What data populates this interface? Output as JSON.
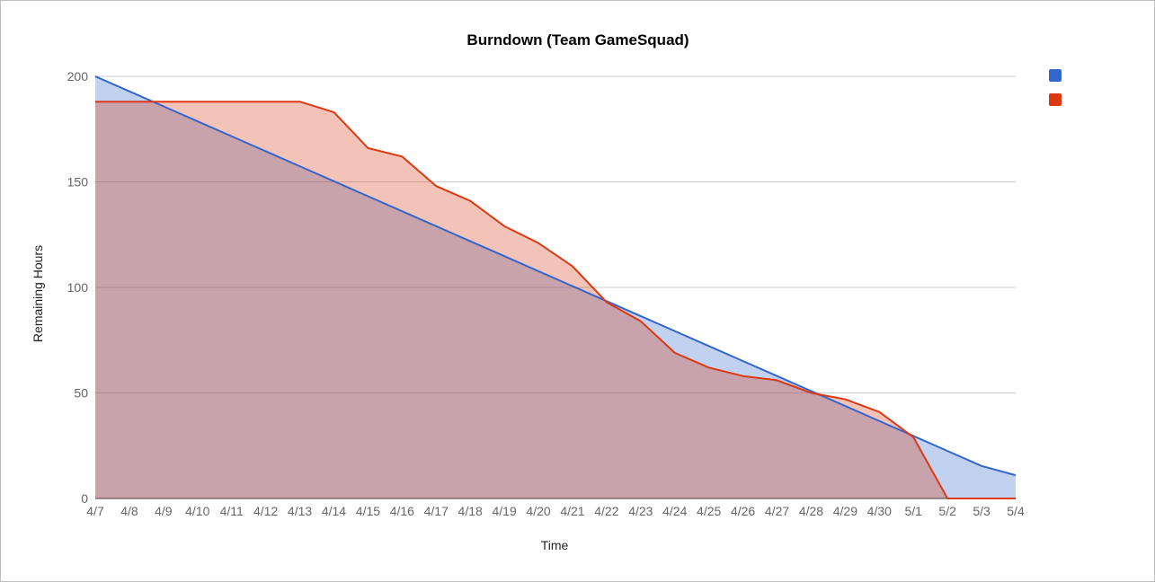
{
  "chart_data": {
    "type": "area",
    "title": "Burndown (Team GameSquad)",
    "xlabel": "Time",
    "ylabel": "Remaining Hours",
    "ylim": [
      0,
      200
    ],
    "yticks": [
      "0",
      "50",
      "100",
      "150",
      "200"
    ],
    "categories": [
      "4/7",
      "4/8",
      "4/9",
      "4/10",
      "4/11",
      "4/12",
      "4/13",
      "4/14",
      "4/15",
      "4/16",
      "4/17",
      "4/18",
      "4/19",
      "4/20",
      "4/21",
      "4/22",
      "4/23",
      "4/24",
      "4/25",
      "4/26",
      "4/27",
      "4/28",
      "4/29",
      "4/30",
      "5/1",
      "5/2",
      "5/3",
      "5/4"
    ],
    "grid": true,
    "legend_position": "right",
    "series": [
      {
        "color": "#3366cc",
        "values": [
          200,
          192.9,
          185.8,
          178.7,
          171.6,
          164.5,
          157.4,
          150.3,
          143.2,
          136.1,
          129.0,
          121.9,
          114.8,
          107.7,
          100.6,
          93.5,
          86.4,
          79.3,
          72.2,
          65.1,
          58.0,
          50.9,
          43.8,
          36.7,
          29.6,
          22.5,
          15.4,
          11
        ]
      },
      {
        "color": "#dc3912",
        "values": [
          188,
          188,
          188,
          188,
          188,
          188,
          188,
          183,
          166,
          162,
          148,
          141,
          129,
          121,
          110,
          93,
          84,
          69,
          62,
          58,
          56,
          50,
          47,
          41,
          29,
          0,
          0,
          0
        ]
      }
    ]
  }
}
